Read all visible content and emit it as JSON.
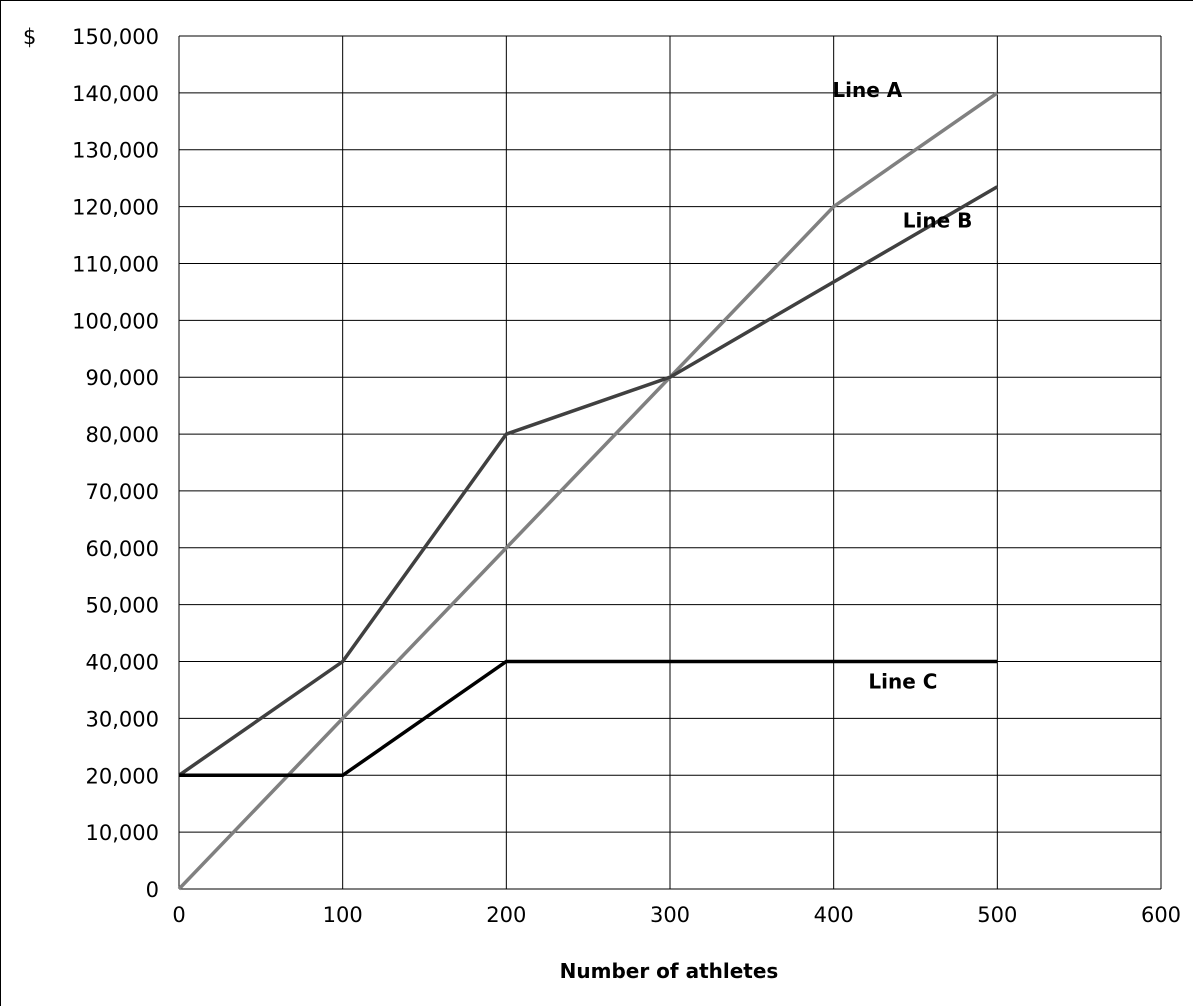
{
  "chart_data": {
    "type": "line",
    "title": "",
    "xlabel": "Number of athletes",
    "ylabel": "$",
    "xlim": [
      0,
      600
    ],
    "ylim": [
      0,
      150000
    ],
    "x_ticks": [
      0,
      100,
      200,
      300,
      400,
      500,
      600
    ],
    "y_ticks": [
      0,
      10000,
      20000,
      30000,
      40000,
      50000,
      60000,
      70000,
      80000,
      90000,
      100000,
      110000,
      120000,
      130000,
      140000,
      150000
    ],
    "x_tick_labels": [
      "0",
      "100",
      "200",
      "300",
      "400",
      "500",
      "600"
    ],
    "y_tick_labels": [
      "0",
      "10,000",
      "20,000",
      "30,000",
      "40,000",
      "50,000",
      "60,000",
      "70,000",
      "80,000",
      "90,000",
      "100,000",
      "110,000",
      "120,000",
      "130,000",
      "140,000",
      "150,000"
    ],
    "grid": true,
    "legend": "inline labels",
    "series": [
      {
        "name": "Line A",
        "color": "#808080",
        "points": [
          [
            0,
            0
          ],
          [
            400,
            120000
          ],
          [
            500,
            140000
          ]
        ]
      },
      {
        "name": "Line B",
        "color": "#404040",
        "points": [
          [
            0,
            20000
          ],
          [
            100,
            40000
          ],
          [
            200,
            80000
          ],
          [
            300,
            90000
          ],
          [
            500,
            123500
          ]
        ]
      },
      {
        "name": "Line C",
        "color": "#000000",
        "points": [
          [
            0,
            20000
          ],
          [
            100,
            20000
          ],
          [
            200,
            40000
          ],
          [
            500,
            40000
          ]
        ]
      }
    ]
  }
}
